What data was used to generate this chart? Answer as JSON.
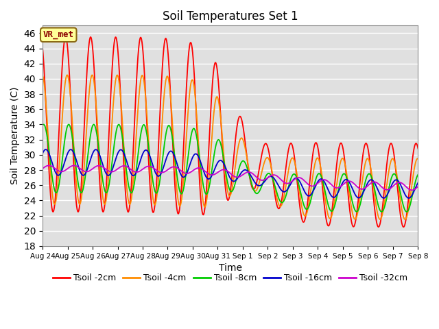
{
  "title": "Soil Temperatures Set 1",
  "xlabel": "Time",
  "ylabel": "Soil Temperature (C)",
  "ylim": [
    18,
    47
  ],
  "yticks": [
    18,
    20,
    22,
    24,
    26,
    28,
    30,
    32,
    34,
    36,
    38,
    40,
    42,
    44,
    46
  ],
  "bg_color": "#e0e0e0",
  "grid_color": "#ffffff",
  "series_colors": {
    "Tsoil -2cm": "#ff0000",
    "Tsoil -4cm": "#ff8c00",
    "Tsoil -8cm": "#00cc00",
    "Tsoil -16cm": "#0000cc",
    "Tsoil -32cm": "#cc00cc"
  },
  "annotation_text": "VR_met",
  "tick_labels": [
    "Aug 24",
    "Aug 25",
    "Aug 26",
    "Aug 27",
    "Aug 28",
    "Aug 29",
    "Aug 30",
    "Aug 31",
    "Sep 1",
    "Sep 2",
    "Sep 3",
    "Sep 4",
    "Sep 5",
    "Sep 6",
    "Sep 7",
    "Sep 8"
  ]
}
